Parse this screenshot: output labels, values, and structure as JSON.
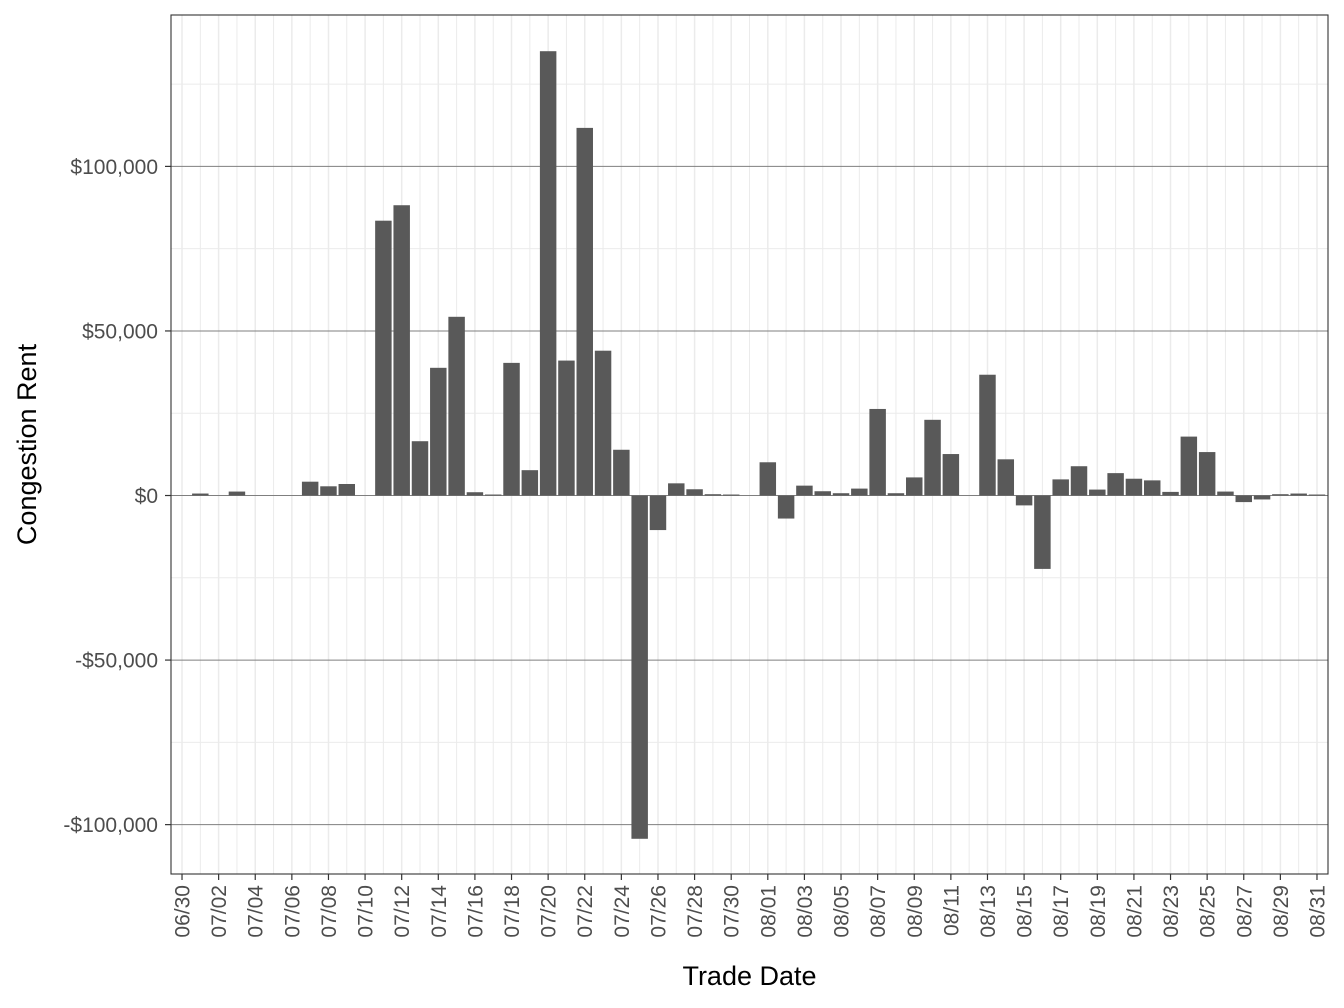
{
  "chart_data": {
    "type": "bar",
    "xlabel": "Trade Date",
    "ylabel": "Congestion Rent",
    "ylim": [
      -115000,
      146000
    ],
    "y_ticks": [
      -100000,
      -50000,
      0,
      50000,
      100000
    ],
    "y_tick_labels": [
      "-$100,000",
      "-$50,000",
      "$0",
      "$50,000",
      "$100,000"
    ],
    "categories": [
      "06/30",
      "07/01",
      "07/02",
      "07/03",
      "07/04",
      "07/05",
      "07/06",
      "07/07",
      "07/08",
      "07/09",
      "07/10",
      "07/11",
      "07/12",
      "07/13",
      "07/14",
      "07/15",
      "07/16",
      "07/17",
      "07/18",
      "07/19",
      "07/20",
      "07/21",
      "07/22",
      "07/23",
      "07/24",
      "07/25",
      "07/26",
      "07/27",
      "07/28",
      "07/29",
      "07/30",
      "07/31",
      "08/01",
      "08/02",
      "08/03",
      "08/04",
      "08/05",
      "08/06",
      "08/07",
      "08/08",
      "08/09",
      "08/10",
      "08/11",
      "08/12",
      "08/13",
      "08/14",
      "08/15",
      "08/16",
      "08/17",
      "08/18",
      "08/19",
      "08/20",
      "08/21",
      "08/22",
      "08/23",
      "08/24",
      "08/25",
      "08/26",
      "08/27",
      "08/28",
      "08/29",
      "08/30",
      "08/31"
    ],
    "x_tick_labels": [
      "06/30",
      "07/02",
      "07/04",
      "07/06",
      "07/08",
      "07/10",
      "07/12",
      "07/14",
      "07/16",
      "07/18",
      "07/20",
      "07/22",
      "07/24",
      "07/26",
      "07/28",
      "07/30",
      "08/01",
      "08/03",
      "08/05",
      "08/07",
      "08/09",
      "08/11",
      "08/13",
      "08/15",
      "08/17",
      "08/19",
      "08/21",
      "08/23",
      "08/25",
      "08/27",
      "08/29",
      "08/31"
    ],
    "values": [
      0,
      600,
      0,
      1200,
      0,
      0,
      0,
      4200,
      2800,
      3500,
      0,
      83500,
      88200,
      16500,
      38800,
      54300,
      1000,
      300,
      40300,
      7700,
      135000,
      41000,
      111700,
      44000,
      13900,
      -104300,
      -10500,
      3700,
      1900,
      400,
      300,
      0,
      10100,
      -7000,
      3000,
      1300,
      700,
      2100,
      26300,
      700,
      5500,
      23000,
      12600,
      0,
      36700,
      11000,
      -3000,
      -22300,
      4900,
      8900,
      1800,
      6800,
      5100,
      4600,
      1100,
      17900,
      13200,
      1200,
      -2000,
      -1200,
      400,
      600,
      300
    ],
    "bar_color": "#595959",
    "grid": true,
    "panel_border": true
  }
}
